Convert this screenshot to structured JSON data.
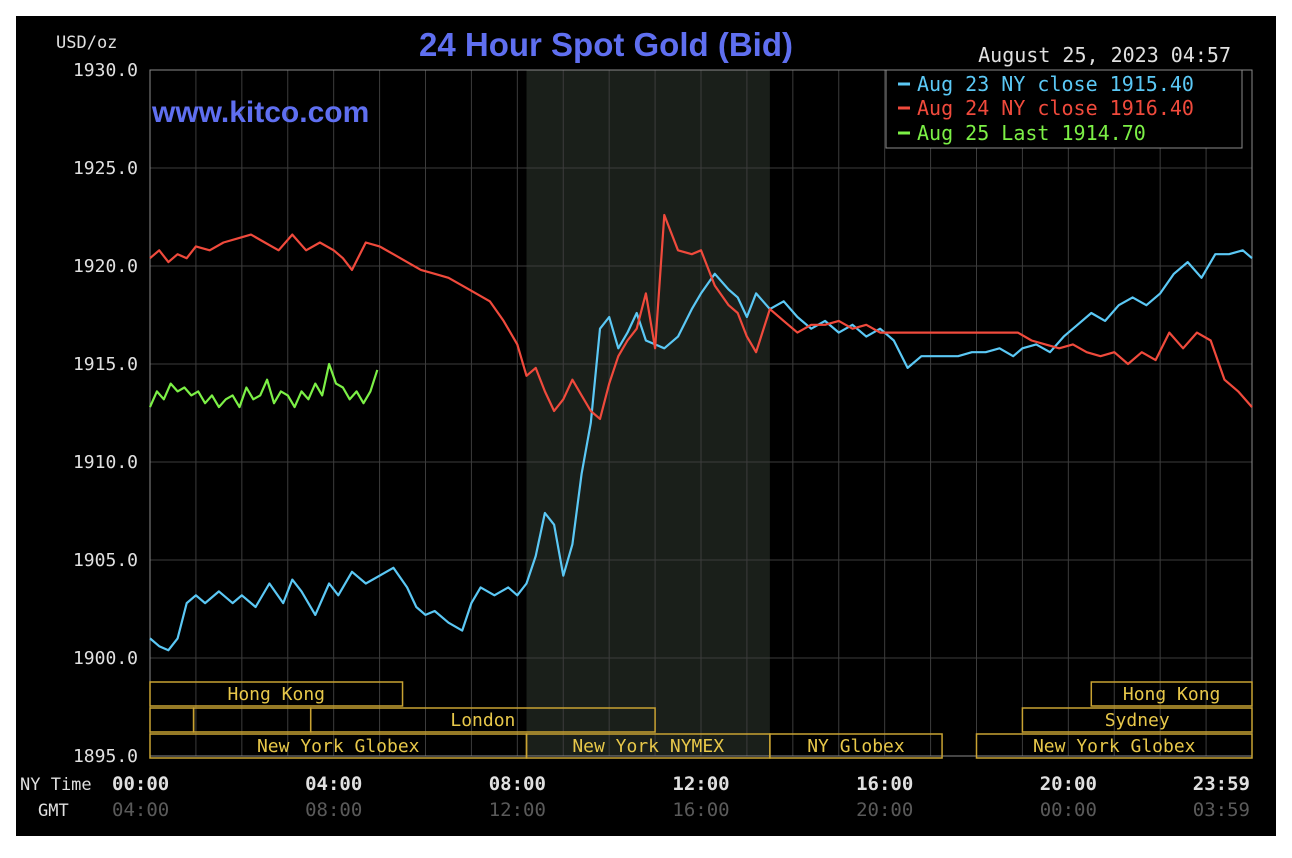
{
  "chart_data": {
    "type": "line",
    "title": "24 Hour Spot Gold (Bid)",
    "watermark": "www.kitco.com",
    "ylabel": "USD/oz",
    "timestamp": "August 25, 2023 04:57",
    "ylim": [
      1895,
      1930
    ],
    "yticks": [
      "1930.0",
      "1925.0",
      "1920.0",
      "1915.0",
      "1910.0",
      "1905.0",
      "1900.0",
      "1895.0"
    ],
    "ytick_values": [
      1930,
      1925,
      1920,
      1915,
      1910,
      1905,
      1900,
      1895
    ],
    "x_range_hours": [
      0,
      24
    ],
    "ny_time_label": "NY Time",
    "gmt_label": "GMT",
    "ny_time_ticks": [
      "00:00",
      "04:00",
      "08:00",
      "12:00",
      "16:00",
      "20:00",
      "23:59"
    ],
    "gmt_ticks": [
      "04:00",
      "08:00",
      "12:00",
      "16:00",
      "20:00",
      "00:00",
      "03:59"
    ],
    "xtick_hours": [
      0,
      4,
      8,
      12,
      16,
      20,
      24
    ],
    "grid": true,
    "legend_position": "top-right",
    "nymex_session_hours": [
      8.2,
      13.5
    ],
    "series": [
      {
        "name": "Aug 23 NY close 1915.40",
        "color": "#5bc8f5",
        "x": [
          0,
          0.2,
          0.4,
          0.6,
          0.8,
          1.0,
          1.2,
          1.5,
          1.8,
          2.0,
          2.3,
          2.6,
          2.9,
          3.1,
          3.3,
          3.6,
          3.9,
          4.1,
          4.4,
          4.7,
          5.0,
          5.3,
          5.6,
          5.8,
          6.0,
          6.2,
          6.5,
          6.8,
          7.0,
          7.2,
          7.5,
          7.8,
          8.0,
          8.2,
          8.4,
          8.6,
          8.8,
          9.0,
          9.2,
          9.4,
          9.6,
          9.8,
          10.0,
          10.2,
          10.4,
          10.6,
          10.8,
          11.0,
          11.2,
          11.5,
          11.8,
          12.0,
          12.3,
          12.6,
          12.8,
          13.0,
          13.2,
          13.5,
          13.8,
          14.1,
          14.4,
          14.7,
          15.0,
          15.3,
          15.6,
          15.9,
          16.2,
          16.5,
          16.8,
          17.0,
          17.3,
          17.6,
          17.9,
          18.2,
          18.5,
          18.8,
          19.0,
          19.3,
          19.6,
          19.9,
          20.2,
          20.5,
          20.8,
          21.1,
          21.4,
          21.7,
          22.0,
          22.3,
          22.6,
          22.9,
          23.2,
          23.5,
          23.8,
          24.0
        ],
        "values": [
          1901.0,
          1900.6,
          1900.4,
          1901.0,
          1902.8,
          1903.2,
          1902.8,
          1903.4,
          1902.8,
          1903.2,
          1902.6,
          1903.8,
          1902.8,
          1904.0,
          1903.4,
          1902.2,
          1903.8,
          1903.2,
          1904.4,
          1903.8,
          1904.2,
          1904.6,
          1903.6,
          1902.6,
          1902.2,
          1902.4,
          1901.8,
          1901.4,
          1902.8,
          1903.6,
          1903.2,
          1903.6,
          1903.2,
          1903.8,
          1905.2,
          1907.4,
          1906.8,
          1904.2,
          1905.8,
          1909.4,
          1912.0,
          1916.8,
          1917.4,
          1915.8,
          1916.6,
          1917.6,
          1916.2,
          1916.0,
          1915.8,
          1916.4,
          1917.8,
          1918.6,
          1919.6,
          1918.8,
          1918.4,
          1917.4,
          1918.6,
          1917.8,
          1918.2,
          1917.4,
          1916.8,
          1917.2,
          1916.6,
          1917.0,
          1916.4,
          1916.8,
          1916.2,
          1914.8,
          1915.4,
          1915.4,
          1915.4,
          1915.4,
          1915.6,
          1915.6,
          1915.8,
          1915.4,
          1915.8,
          1916.0,
          1915.6,
          1916.4,
          1917.0,
          1917.6,
          1917.2,
          1918.0,
          1918.4,
          1918.0,
          1918.6,
          1919.6,
          1920.2,
          1919.4,
          1920.6,
          1920.6,
          1920.8,
          1920.4
        ]
      },
      {
        "name": "Aug 24 NY close 1916.40",
        "color": "#f04a3c",
        "x": [
          0,
          0.2,
          0.4,
          0.6,
          0.8,
          1.0,
          1.3,
          1.6,
          1.9,
          2.2,
          2.5,
          2.8,
          3.1,
          3.4,
          3.7,
          4.0,
          4.2,
          4.4,
          4.7,
          5.0,
          5.3,
          5.6,
          5.9,
          6.2,
          6.5,
          6.8,
          7.1,
          7.4,
          7.7,
          8.0,
          8.2,
          8.4,
          8.6,
          8.8,
          9.0,
          9.2,
          9.4,
          9.6,
          9.8,
          10.0,
          10.2,
          10.4,
          10.6,
          10.8,
          11.0,
          11.2,
          11.5,
          11.8,
          12.0,
          12.3,
          12.6,
          12.8,
          13.0,
          13.2,
          13.5,
          13.8,
          14.1,
          14.4,
          14.7,
          15.0,
          15.3,
          15.6,
          15.9,
          16.2,
          16.5,
          16.8,
          17.1,
          17.4,
          17.7,
          18.0,
          18.3,
          18.6,
          18.9,
          19.2,
          19.5,
          19.8,
          20.1,
          20.4,
          20.7,
          21.0,
          21.3,
          21.6,
          21.9,
          22.2,
          22.5,
          22.8,
          23.1,
          23.4,
          23.7,
          24.0
        ],
        "values": [
          1920.4,
          1920.8,
          1920.2,
          1920.6,
          1920.4,
          1921.0,
          1920.8,
          1921.2,
          1921.4,
          1921.6,
          1921.2,
          1920.8,
          1921.6,
          1920.8,
          1921.2,
          1920.8,
          1920.4,
          1919.8,
          1921.2,
          1921.0,
          1920.6,
          1920.2,
          1919.8,
          1919.6,
          1919.4,
          1919.0,
          1918.6,
          1918.2,
          1917.2,
          1916.0,
          1914.4,
          1914.8,
          1913.6,
          1912.6,
          1913.2,
          1914.2,
          1913.4,
          1912.6,
          1912.2,
          1914.0,
          1915.4,
          1916.2,
          1916.8,
          1918.6,
          1915.8,
          1922.6,
          1920.8,
          1920.6,
          1920.8,
          1919.0,
          1918.0,
          1917.6,
          1916.4,
          1915.6,
          1917.8,
          1917.2,
          1916.6,
          1917.0,
          1917.0,
          1917.2,
          1916.8,
          1917.0,
          1916.6,
          1916.6,
          1916.6,
          1916.6,
          1916.6,
          1916.6,
          1916.6,
          1916.6,
          1916.6,
          1916.6,
          1916.6,
          1916.2,
          1916.0,
          1915.8,
          1916.0,
          1915.6,
          1915.4,
          1915.6,
          1915.0,
          1915.6,
          1915.2,
          1916.6,
          1915.8,
          1916.6,
          1916.2,
          1914.2,
          1913.6,
          1912.8
        ]
      },
      {
        "name": "Aug 25 Last 1914.70",
        "color": "#7cf046",
        "x": [
          0,
          0.15,
          0.3,
          0.45,
          0.6,
          0.75,
          0.9,
          1.05,
          1.2,
          1.35,
          1.5,
          1.65,
          1.8,
          1.95,
          2.1,
          2.25,
          2.4,
          2.55,
          2.7,
          2.85,
          3.0,
          3.15,
          3.3,
          3.45,
          3.6,
          3.75,
          3.9,
          4.05,
          4.2,
          4.35,
          4.5,
          4.65,
          4.8,
          4.95
        ],
        "values": [
          1912.8,
          1913.6,
          1913.2,
          1914.0,
          1913.6,
          1913.8,
          1913.4,
          1913.6,
          1913.0,
          1913.4,
          1912.8,
          1913.2,
          1913.4,
          1912.8,
          1913.8,
          1913.2,
          1913.4,
          1914.2,
          1913.0,
          1913.6,
          1913.4,
          1912.8,
          1913.6,
          1913.2,
          1914.0,
          1913.4,
          1915.0,
          1914.0,
          1913.8,
          1913.2,
          1913.6,
          1913.0,
          1913.6,
          1914.7
        ]
      }
    ],
    "sessions": [
      {
        "label": "Hong Kong",
        "row": 0,
        "start": 0,
        "end": 5.5
      },
      {
        "label": "",
        "row": 1,
        "start": 0,
        "end": 0.95
      },
      {
        "label": "",
        "row": 1,
        "start": 0.95,
        "end": 3.5
      },
      {
        "label": "London",
        "row": 1,
        "start": 3.5,
        "end": 11.0
      },
      {
        "label": "New York Globex",
        "row": 2,
        "start": 0,
        "end": 8.2
      },
      {
        "label": "New York NYMEX",
        "row": 2,
        "start": 8.2,
        "end": 13.5
      },
      {
        "label": "NY Globex",
        "row": 2,
        "start": 13.5,
        "end": 17.25
      },
      {
        "label": "Hong Kong",
        "row": 0,
        "start": 20.5,
        "end": 24
      },
      {
        "label": "Sydney",
        "row": 1,
        "start": 19.0,
        "end": 24
      },
      {
        "label": "New York Globex",
        "row": 2,
        "start": 18.0,
        "end": 24
      }
    ]
  }
}
